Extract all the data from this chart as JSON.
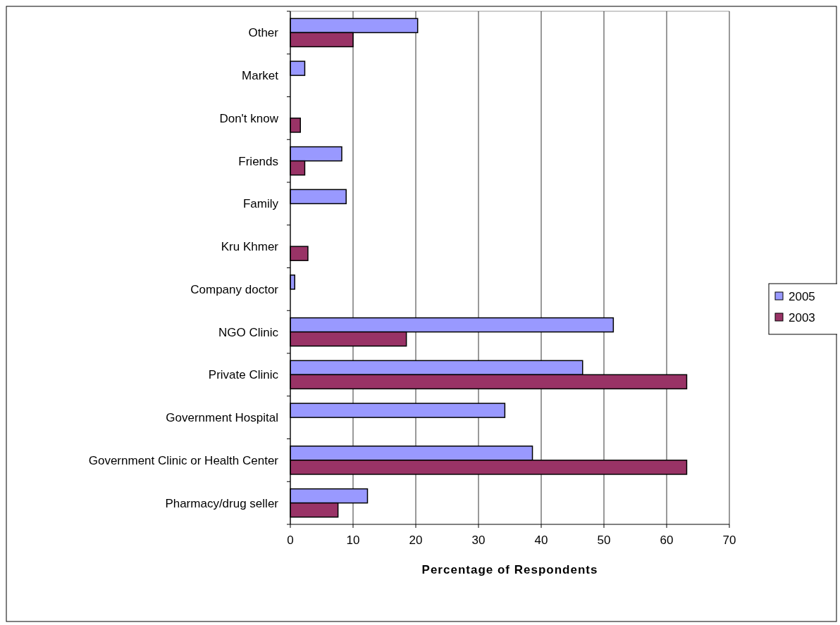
{
  "chart_data": {
    "type": "bar",
    "orientation": "horizontal",
    "xlabel": "Percentage of Respondents",
    "categories": [
      "Other",
      "Market",
      "Don't know",
      "Friends",
      "Family",
      "Kru Khmer",
      "Company doctor",
      "NGO Clinic",
      "Private Clinic",
      "Government Hospital",
      "Government Clinic or Health Center",
      "Pharmacy/drug seller"
    ],
    "series": [
      {
        "name": "2005",
        "color": "#9999ff",
        "values": [
          20.3,
          2.3,
          null,
          8.2,
          8.9,
          null,
          0.7,
          51.5,
          46.6,
          34.2,
          38.6,
          12.3
        ]
      },
      {
        "name": "2003",
        "color": "#993366",
        "values": [
          10,
          null,
          1.6,
          2.3,
          null,
          2.8,
          null,
          18.5,
          63.2,
          null,
          63.2,
          7.6
        ]
      }
    ],
    "xlim": [
      0,
      70
    ],
    "xticks": [
      0,
      10,
      20,
      30,
      40,
      50,
      60,
      70
    ],
    "grid": "x",
    "legend": "right"
  }
}
